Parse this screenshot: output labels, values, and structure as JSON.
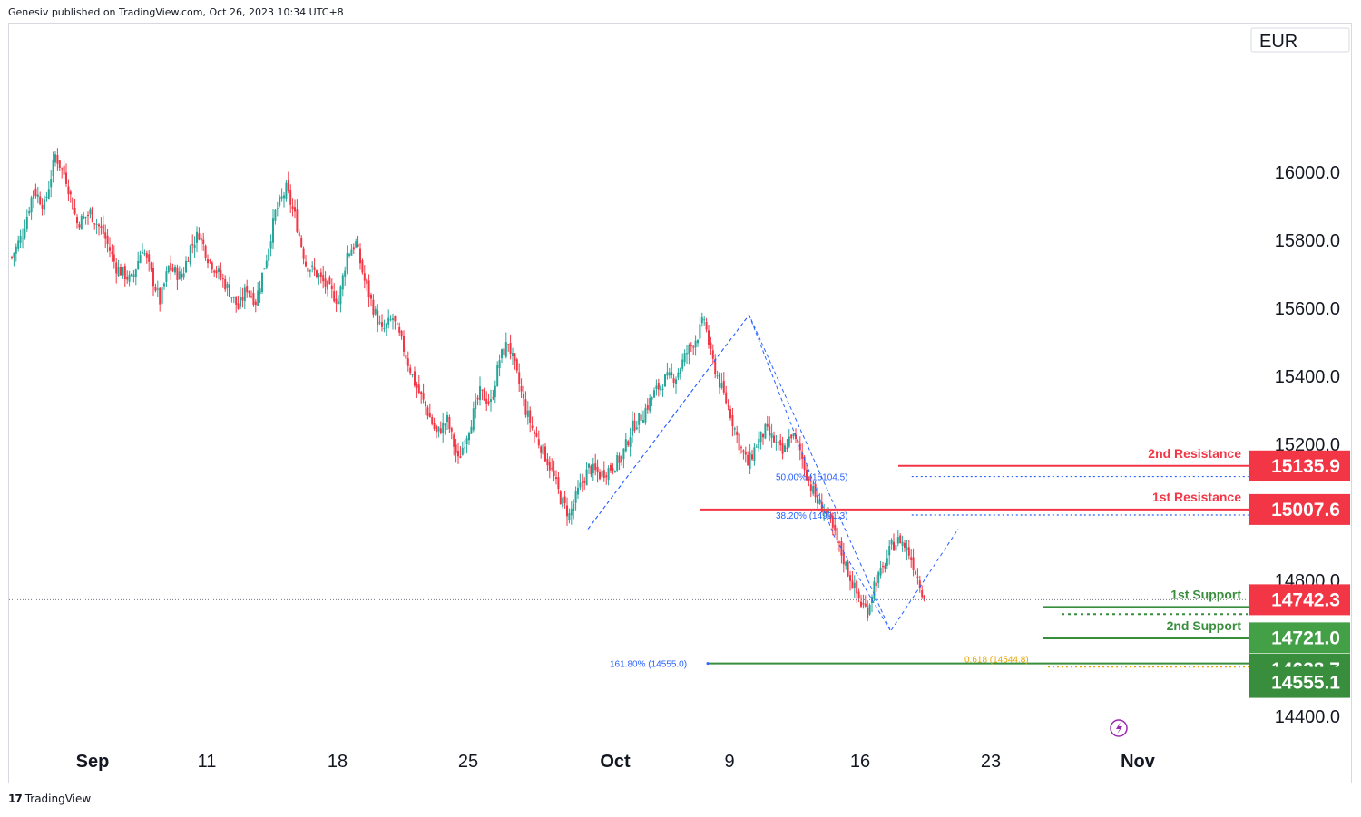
{
  "header": {
    "text": "Genesiv published on TradingView.com, Oct 26, 2023 10:34 UTC+8"
  },
  "footer": {
    "logo": "17",
    "brand": "TradingView"
  },
  "colors": {
    "up": "#26a69a",
    "down": "#f23645",
    "resistance": "#f23645",
    "support": "#388e3c",
    "fib": "#2962ff",
    "fib_gold": "#e6a600",
    "price_tag": "#f23645"
  },
  "chart_data": {
    "type": "candlestick",
    "currency": "EUR",
    "ylim": [
      14330,
      16250
    ],
    "y_ticks": [
      "16000.0",
      "15800.0",
      "15600.0",
      "15400.0",
      "15200.0",
      "14800.0",
      "14400.0"
    ],
    "x_ticks": [
      {
        "label": "Sep",
        "bar": 30
      },
      {
        "label": "11",
        "bar": 90
      },
      {
        "label": "18",
        "bar": 150
      },
      {
        "label": "25",
        "bar": 210
      },
      {
        "label": "Oct",
        "bar": 270
      },
      {
        "label": "9",
        "bar": 330
      },
      {
        "label": "16",
        "bar": 390
      },
      {
        "label": "23",
        "bar": 450
      },
      {
        "label": "Nov",
        "bar": 510
      }
    ],
    "bar_count": 520,
    "ohlc_anchors": [
      [
        0,
        15750
      ],
      [
        5,
        15820
      ],
      [
        10,
        15950
      ],
      [
        15,
        15900
      ],
      [
        20,
        16050
      ],
      [
        25,
        15980
      ],
      [
        30,
        15850
      ],
      [
        36,
        15880
      ],
      [
        42,
        15820
      ],
      [
        48,
        15720
      ],
      [
        55,
        15680
      ],
      [
        60,
        15780
      ],
      [
        64,
        15700
      ],
      [
        68,
        15620
      ],
      [
        72,
        15720
      ],
      [
        78,
        15690
      ],
      [
        82,
        15780
      ],
      [
        86,
        15820
      ],
      [
        90,
        15750
      ],
      [
        95,
        15700
      ],
      [
        100,
        15650
      ],
      [
        104,
        15600
      ],
      [
        108,
        15660
      ],
      [
        112,
        15620
      ],
      [
        117,
        15750
      ],
      [
        121,
        15880
      ],
      [
        126,
        15950
      ],
      [
        130,
        15870
      ],
      [
        135,
        15730
      ],
      [
        140,
        15700
      ],
      [
        145,
        15660
      ],
      [
        150,
        15620
      ],
      [
        154,
        15760
      ],
      [
        158,
        15790
      ],
      [
        162,
        15680
      ],
      [
        166,
        15600
      ],
      [
        170,
        15530
      ],
      [
        175,
        15570
      ],
      [
        180,
        15480
      ],
      [
        185,
        15380
      ],
      [
        190,
        15310
      ],
      [
        195,
        15230
      ],
      [
        200,
        15270
      ],
      [
        205,
        15150
      ],
      [
        210,
        15250
      ],
      [
        215,
        15350
      ],
      [
        220,
        15320
      ],
      [
        224,
        15450
      ],
      [
        228,
        15500
      ],
      [
        232,
        15400
      ],
      [
        236,
        15300
      ],
      [
        240,
        15230
      ],
      [
        244,
        15180
      ],
      [
        248,
        15120
      ],
      [
        252,
        15040
      ],
      [
        256,
        14990
      ],
      [
        260,
        15060
      ],
      [
        265,
        15130
      ],
      [
        270,
        15110
      ],
      [
        275,
        15130
      ],
      [
        280,
        15160
      ],
      [
        285,
        15250
      ],
      [
        290,
        15290
      ],
      [
        295,
        15350
      ],
      [
        300,
        15390
      ],
      [
        305,
        15400
      ],
      [
        310,
        15470
      ],
      [
        315,
        15520
      ],
      [
        318,
        15570
      ],
      [
        321,
        15460
      ],
      [
        325,
        15380
      ],
      [
        330,
        15290
      ],
      [
        334,
        15200
      ],
      [
        338,
        15140
      ],
      [
        342,
        15200
      ],
      [
        346,
        15240
      ],
      [
        350,
        15210
      ],
      [
        354,
        15170
      ],
      [
        358,
        15230
      ],
      [
        362,
        15180
      ],
      [
        366,
        15090
      ],
      [
        370,
        15030
      ],
      [
        374,
        15000
      ],
      [
        378,
        14930
      ],
      [
        382,
        14860
      ],
      [
        386,
        14790
      ],
      [
        390,
        14730
      ],
      [
        393,
        14710
      ],
      [
        396,
        14790
      ],
      [
        400,
        14830
      ],
      [
        404,
        14900
      ],
      [
        408,
        14920
      ],
      [
        412,
        14880
      ],
      [
        416,
        14810
      ],
      [
        419,
        14750
      ]
    ],
    "fib_left": {
      "labels": [
        "50.00% (15104.5)",
        "38.20% (14991.3)",
        "161.80% (14555.0)"
      ],
      "values": [
        15104.5,
        14991.3,
        14555.0
      ]
    },
    "fib_right": {
      "label": "0.618 (14544.8)",
      "value": 14544.8
    },
    "levels": [
      {
        "name": "2nd Resistance",
        "value": "15135.9",
        "y": 15135.9,
        "kind": "resistance"
      },
      {
        "name": "1st Resistance",
        "value": "15007.6",
        "y": 15007.6,
        "kind": "resistance"
      },
      {
        "name": "1st Support",
        "value": "14721.0",
        "y": 14721.0,
        "kind": "support"
      },
      {
        "name": "2nd Support",
        "value": "14628.7",
        "y": 14628.7,
        "kind": "support"
      }
    ],
    "extra_tag": {
      "value": "14555.1",
      "y": 14555.1
    },
    "last_price": {
      "value": "14742.3",
      "y": 14742.3
    }
  }
}
